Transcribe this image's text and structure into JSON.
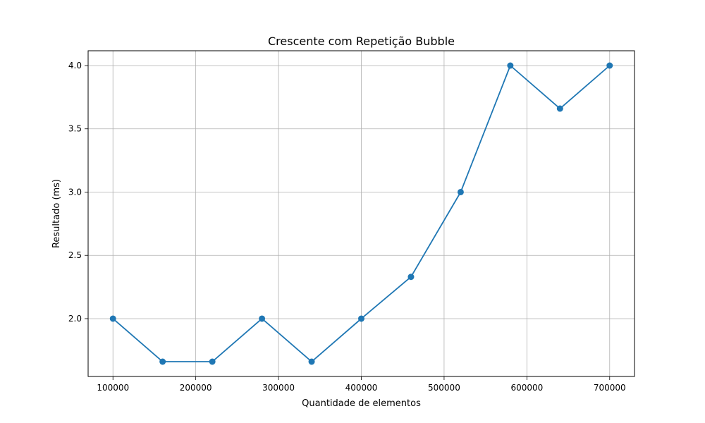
{
  "chart_data": {
    "type": "line",
    "title": "Crescente com Repetição Bubble",
    "xlabel": "Quantidade de elementos",
    "ylabel": "Resultado (ms)",
    "x": [
      100000,
      160000,
      220000,
      280000,
      340000,
      400000,
      460000,
      520000,
      580000,
      640000,
      700000
    ],
    "series": [
      {
        "values": [
          2.0,
          1.66,
          1.66,
          2.0,
          1.66,
          2.0,
          2.33,
          3.0,
          4.0,
          3.66,
          4.0
        ],
        "color": "#1f77b4",
        "marker": "circle"
      }
    ],
    "xticks": [
      100000,
      200000,
      300000,
      400000,
      500000,
      600000,
      700000
    ],
    "xtick_labels": [
      "100000",
      "200000",
      "300000",
      "400000",
      "500000",
      "600000",
      "700000"
    ],
    "yticks": [
      2.0,
      2.5,
      3.0,
      3.5,
      4.0
    ],
    "ytick_labels": [
      "2.0",
      "2.5",
      "3.0",
      "3.5",
      "4.0"
    ],
    "xlim": [
      70000,
      730000
    ],
    "ylim": [
      1.543,
      4.117
    ],
    "grid": true,
    "grid_color": "#b0b0b0",
    "axis_color": "#000000"
  }
}
